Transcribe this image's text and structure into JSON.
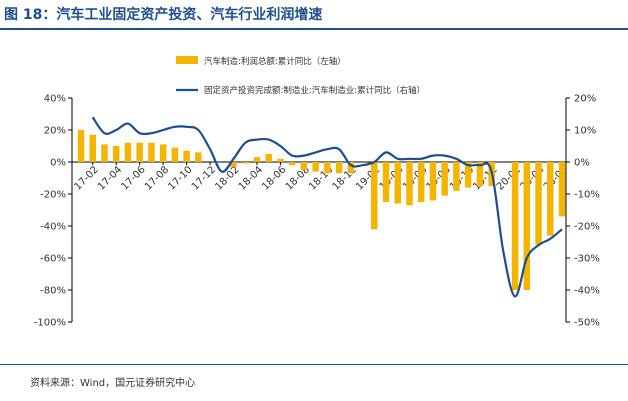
{
  "header": {
    "title": "图 18：汽车工业固定资产投资、汽车行业利润增速"
  },
  "footer": {
    "source": "资料来源：Wind，国元证券研究中心"
  },
  "colors": {
    "brand": "#1f4e8c",
    "bar": "#f5b400",
    "line": "#1f4e8c"
  },
  "chart_data": {
    "type": "bar",
    "legend_placement": "top-center",
    "grid": false,
    "x_tick_labels": [
      "17-02",
      "17-04",
      "17-06",
      "17-08",
      "17-10",
      "17-12",
      "18-02",
      "18-04",
      "18-06",
      "18-08",
      "18-10",
      "18-12",
      "19-02",
      "19-04",
      "19-06",
      "19-08",
      "19-10",
      "19-12",
      "20-02",
      "20-04",
      "20-06"
    ],
    "left_axis": {
      "ylim": [
        -100,
        40
      ],
      "ticks": [
        "40%",
        "20%",
        "0%",
        "-20%",
        "-40%",
        "-60%",
        "-80%",
        "-100%"
      ]
    },
    "right_axis": {
      "ylim": [
        -50,
        20
      ],
      "ticks": [
        "20%",
        "10%",
        "0%",
        "-10%",
        "-20%",
        "-30%",
        "-40%",
        "-50%"
      ]
    },
    "series": [
      {
        "name": "汽车制造:利润总额:累计同比（左轴）",
        "axis": "left",
        "type": "bar",
        "x": [
          "2017-01",
          "2017-02",
          "2017-03",
          "2017-04",
          "2017-05",
          "2017-06",
          "2017-07",
          "2017-08",
          "2017-09",
          "2017-10",
          "2017-11",
          "2017-12",
          "2018-01",
          "2018-02",
          "2018-03",
          "2018-04",
          "2018-05",
          "2018-06",
          "2018-07",
          "2018-08",
          "2018-09",
          "2018-10",
          "2018-11",
          "2018-12",
          "2019-01",
          "2019-02",
          "2019-03",
          "2019-04",
          "2019-05",
          "2019-06",
          "2019-07",
          "2019-08",
          "2019-09",
          "2019-10",
          "2019-11",
          "2019-12",
          "2020-01",
          "2020-02",
          "2020-03",
          "2020-04",
          "2020-05",
          "2020-06"
        ],
        "values": [
          20,
          17,
          11,
          10,
          12,
          12,
          12,
          11,
          9,
          7,
          6,
          null,
          null,
          -3,
          -1,
          3,
          5,
          2,
          -2,
          -5,
          -6,
          -7,
          -7,
          -7,
          null,
          -42,
          -25,
          -26,
          -27,
          -25,
          -24,
          -21,
          -18,
          -16,
          -15,
          -15,
          null,
          -80,
          -80,
          -52,
          -46,
          -34
        ]
      },
      {
        "name": "固定资产投资完成额:制造业:汽车制造业:累计同比（右轴）",
        "axis": "right",
        "type": "line",
        "x": [
          "2017-02",
          "2017-03",
          "2017-04",
          "2017-05",
          "2017-06",
          "2017-07",
          "2017-08",
          "2017-09",
          "2017-10",
          "2017-11",
          "2017-12",
          "2018-01",
          "2018-02",
          "2018-03",
          "2018-04",
          "2018-05",
          "2018-06",
          "2018-07",
          "2018-08",
          "2018-09",
          "2018-10",
          "2018-11",
          "2018-12",
          "2019-01",
          "2019-02",
          "2019-03",
          "2019-04",
          "2019-05",
          "2019-06",
          "2019-07",
          "2019-08",
          "2019-09",
          "2019-10",
          "2019-11",
          "2019-12",
          "2020-01",
          "2020-02",
          "2020-03",
          "2020-04",
          "2020-05",
          "2020-06"
        ],
        "values": [
          14,
          9,
          10,
          12,
          9,
          9,
          10,
          11,
          11,
          10,
          4,
          -3,
          1,
          6,
          7,
          7,
          5,
          2,
          2,
          3,
          4,
          4,
          -1,
          -1,
          0,
          3,
          1,
          1,
          1,
          2,
          2,
          1,
          -1,
          -1,
          -3,
          -28,
          -42,
          -30,
          -26,
          -24,
          -21
        ]
      }
    ]
  }
}
